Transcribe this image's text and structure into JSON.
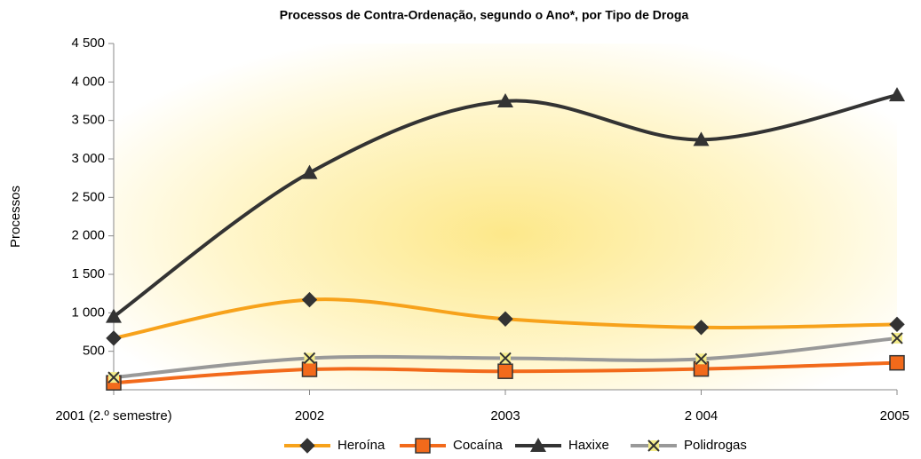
{
  "chart_data": {
    "type": "line",
    "title": "Processos de Contra-Ordenação, segundo o Ano*, por Tipo de Droga",
    "ylabel": "Processos",
    "categories": [
      "2001 (2.º semestre)",
      "2002",
      "2003",
      "2 004",
      "2005"
    ],
    "series": [
      {
        "name": "Heroína",
        "color": "#f7a21b",
        "marker": "diamond",
        "values": [
          670,
          1170,
          920,
          810,
          850
        ]
      },
      {
        "name": "Cocaína",
        "color": "#f26a1b",
        "marker": "square",
        "values": [
          90,
          265,
          240,
          270,
          350
        ]
      },
      {
        "name": "Haxixe",
        "color": "#333333",
        "marker": "triangle",
        "values": [
          950,
          2820,
          3750,
          3250,
          3830
        ]
      },
      {
        "name": "Polidrogas",
        "color": "#999999",
        "marker": "x",
        "values": [
          160,
          410,
          410,
          400,
          670
        ]
      }
    ],
    "ylim": [
      0,
      4500
    ],
    "yticks": [
      500,
      {
        "value": 1000,
        "label": "1 000"
      },
      {
        "value": 1500,
        "label": "1 500"
      },
      {
        "value": 2000,
        "label": "2 000"
      },
      {
        "value": 2500,
        "label": "2 500"
      },
      {
        "value": 3000,
        "label": "3 000"
      },
      {
        "value": 3500,
        "label": "3 500"
      },
      {
        "value": 4000,
        "label": "4 000"
      },
      {
        "value": 4500,
        "label": "4 500"
      }
    ],
    "legend": "bottom"
  }
}
